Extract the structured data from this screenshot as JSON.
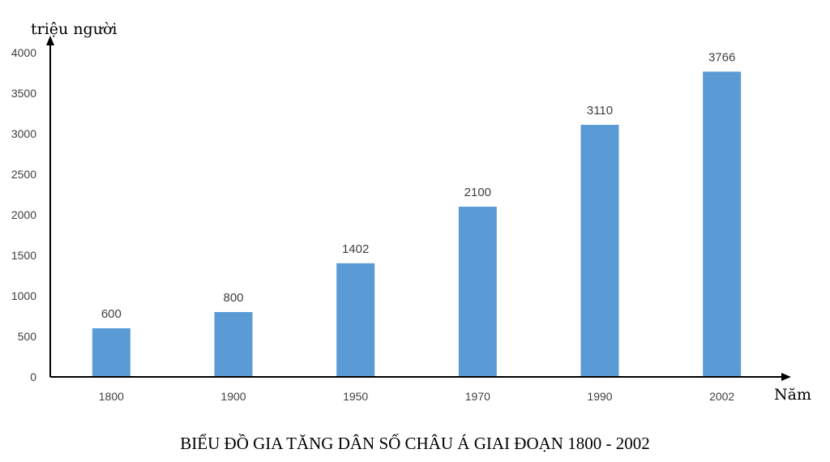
{
  "chart_data": {
    "type": "bar",
    "title": "BIỂU ĐỒ GIA TĂNG DÂN SỐ CHÂU Á GIAI ĐOẠN 1800 - 2002",
    "ylabel": "triệu người",
    "xlabel": "Năm",
    "categories": [
      "1800",
      "1900",
      "1950",
      "1970",
      "1990",
      "2002"
    ],
    "values": [
      600,
      800,
      1402,
      2100,
      3110,
      3766
    ],
    "ylim": [
      0,
      4000
    ],
    "yticks": [
      0,
      500,
      1000,
      1500,
      2000,
      2500,
      3000,
      3500,
      4000
    ],
    "grid": false,
    "bar_color": "#5b9bd5",
    "data_labels": true
  }
}
